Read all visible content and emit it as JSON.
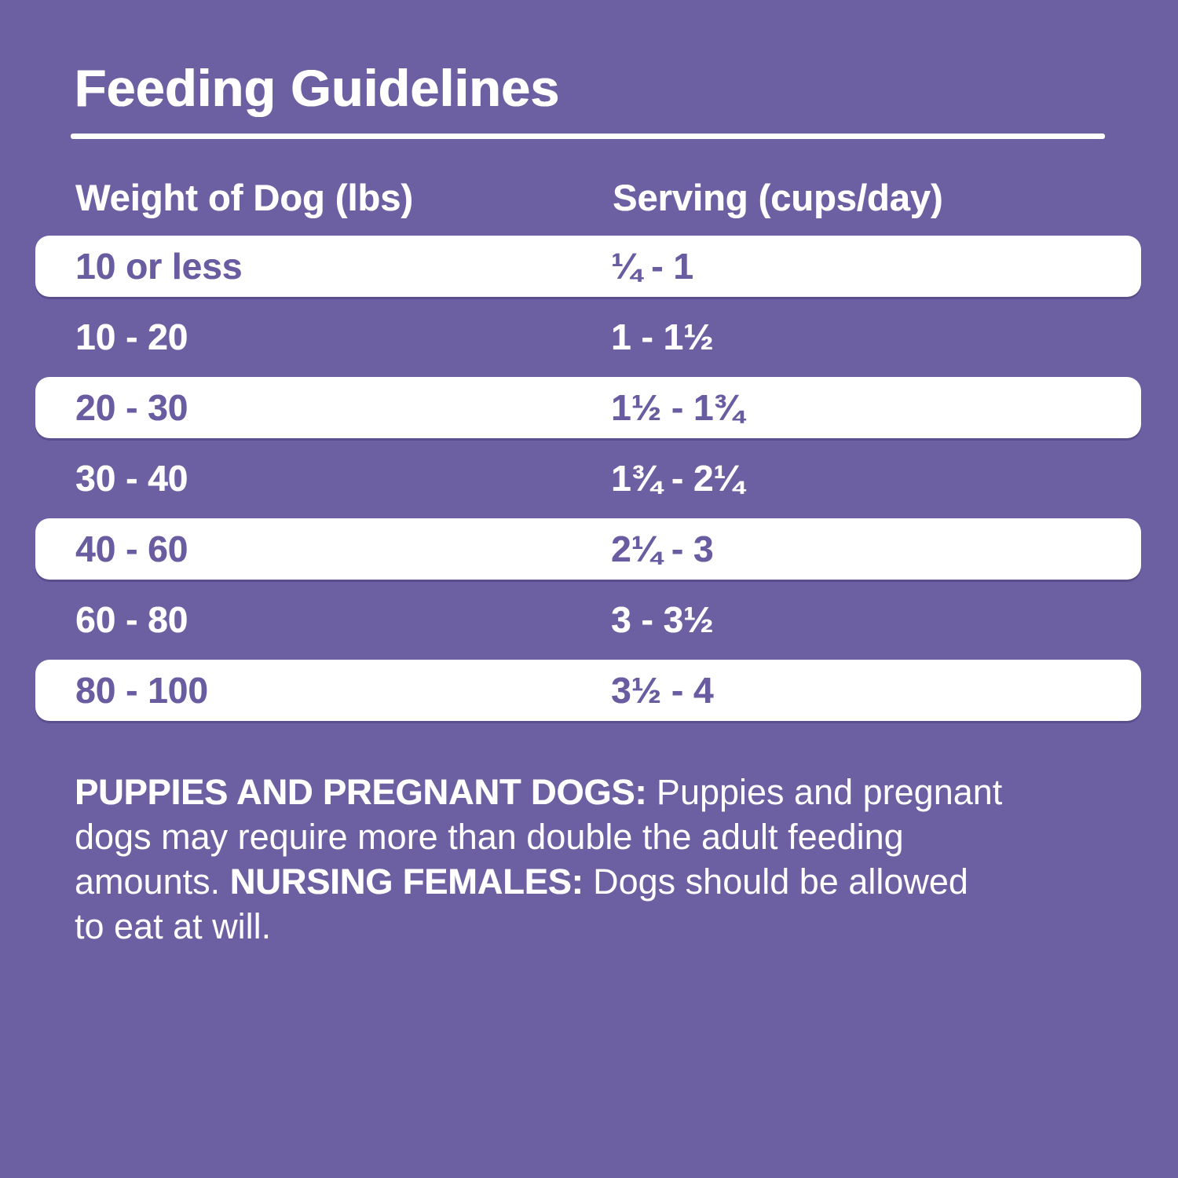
{
  "title": "Feeding Guidelines",
  "columns": {
    "weight": "Weight of Dog (lbs)",
    "serving": "Serving (cups/day)"
  },
  "rows": [
    {
      "weight": "10 or less",
      "serving": "¼ - 1"
    },
    {
      "weight": "10 - 20",
      "serving": "1 - 1½"
    },
    {
      "weight": "20 - 30",
      "serving": "1½ - 1¾"
    },
    {
      "weight": "30 - 40",
      "serving": "1¾ - 2¼"
    },
    {
      "weight": "40 - 60",
      "serving": "2¼ - 3"
    },
    {
      "weight": "60 - 80",
      "serving": "3 - 3½"
    },
    {
      "weight": "80 - 100",
      "serving": "3½ - 4"
    }
  ],
  "footnote": {
    "lines": [
      {
        "b": "PUPPIES AND PREGNANT DOGS:",
        "t": " Puppies and pregnant"
      },
      {
        "t": "dogs may require more than double the adult feeding"
      },
      {
        "t1": "amounts. ",
        "b": "NURSING FEMALES:",
        "t2": " Dogs should be allowed"
      },
      {
        "t": "to eat at will."
      }
    ]
  },
  "colors": {
    "background": "#6C60A2",
    "row_white": "#FFFFFF",
    "row_text_purple": "#695CA0",
    "text_white": "#FFFFFF"
  },
  "chart_data": {
    "type": "table",
    "title": "Feeding Guidelines",
    "columns": [
      "Weight of Dog (lbs)",
      "Serving (cups/day)"
    ],
    "rows": [
      [
        "10 or less",
        "¼ - 1"
      ],
      [
        "10 - 20",
        "1 - 1½"
      ],
      [
        "20 - 30",
        "1½ - 1¾"
      ],
      [
        "30 - 40",
        "1¾ - 2¼"
      ],
      [
        "40 - 60",
        "2¼ - 3"
      ],
      [
        "60 - 80",
        "3 - 3½"
      ],
      [
        "80 - 100",
        "3½ - 4"
      ]
    ]
  }
}
